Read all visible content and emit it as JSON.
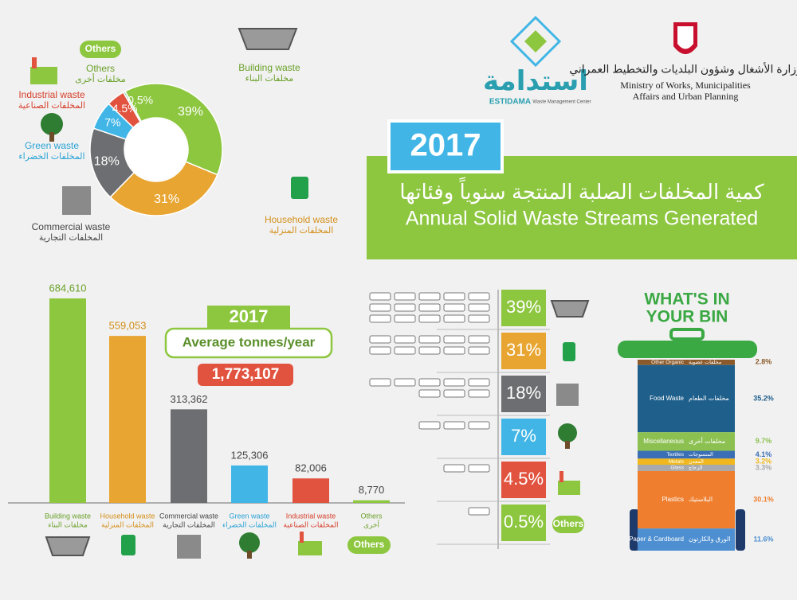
{
  "header": {
    "logo_ar": "استدامة",
    "logo_en": "ESTIDAMA",
    "logo_sub": "Waste Management Center",
    "ministry_ar": "وزارة الأشغال وشؤون البلديات والتخطيط العمراني",
    "ministry_en": [
      "Ministry of Works, Municipalities",
      "Affairs and Urban Planning"
    ],
    "year": "2017",
    "title_ar": "كمية المخلفات الصلبة المنتجة سنوياً وفئاتها",
    "title_en": "Annual Solid Waste Streams Generated"
  },
  "chart_data": [
    {
      "type": "donut",
      "badge": "Others",
      "categories": [
        "Building waste",
        "Household waste",
        "Commercial waste",
        "Green waste",
        "Industrial waste",
        "Others"
      ],
      "categories_ar": [
        "مخلفات البناء",
        "المخلفات المنزلية",
        "المخلفات التجارية",
        "المخلفات الخضراء",
        "المخلفات الصناعية",
        "مخلفات أخرى"
      ],
      "values": [
        39,
        31,
        18,
        7,
        4.5,
        0.5
      ],
      "value_labels": [
        "39%",
        "31%",
        "18%",
        "7%",
        "4.5%",
        "0.5%"
      ],
      "colors": [
        "#8dc63f",
        "#e8a531",
        "#6d6e71",
        "#41b6e6",
        "#e1533f",
        "#9ad3b5"
      ]
    },
    {
      "type": "bar",
      "badge": "Others",
      "annotations": {
        "year": "2017",
        "label": "Average tonnes/year",
        "total": "1,773,107"
      },
      "categories": [
        "Building waste",
        "Household waste",
        "Commercial waste",
        "Green waste",
        "Industrial waste",
        "Others"
      ],
      "categories_ar": [
        "مخلفات البناء",
        "المخلفات المنزلية",
        "المخلفات التجارية",
        "المخلفات الخضراء",
        "المخلفات الصناعية",
        "أخرى"
      ],
      "values": [
        684610,
        559053,
        313362,
        125306,
        82006,
        8770
      ],
      "value_labels": [
        "684,610",
        "559,053",
        "313,362",
        "125,306",
        "82,006",
        "8,770"
      ],
      "colors": [
        "#8dc63f",
        "#e8a531",
        "#6d6e71",
        "#41b6e6",
        "#e1533f",
        "#8dc63f"
      ]
    },
    {
      "type": "pictogram",
      "badge": "Others",
      "values": [
        39,
        31,
        18,
        7,
        4.5,
        0.5
      ],
      "value_labels": [
        "39%",
        "31%",
        "18%",
        "7%",
        "4.5%",
        "0.5%"
      ],
      "colors": [
        "#8dc63f",
        "#e8a531",
        "#6d6e71",
        "#41b6e6",
        "#e1533f",
        "#8dc63f"
      ]
    },
    {
      "type": "stacked_bar",
      "title_lines": [
        "WHAT'S IN",
        "YOUR BIN"
      ],
      "categories": [
        "Other Organic",
        "Food Waste",
        "Miscellaneous",
        "Textiles",
        "Metals",
        "Glass",
        "Plastics",
        "Paper & Cardboard"
      ],
      "categories_ar": [
        "مخلفات عضوية",
        "مخلفات الطعام",
        "مخلفات أخرى",
        "المنسوجات",
        "المعدن",
        "الزجاج",
        "البلاستيك",
        "الورق والكارتون"
      ],
      "values": [
        2.8,
        35.2,
        9.7,
        4.1,
        3.2,
        3.3,
        30.1,
        11.6
      ],
      "value_labels": [
        "2.8%",
        "35.2%",
        "9.7%",
        "4.1%",
        "3.2%",
        "3.3%",
        "30.1%",
        "11.6%"
      ],
      "colors": [
        "#8b5a2b",
        "#1f5f8b",
        "#8cc152",
        "#3a6fb6",
        "#f0b81e",
        "#a7a9ac",
        "#ef7f2f",
        "#4d8fd1"
      ]
    }
  ]
}
